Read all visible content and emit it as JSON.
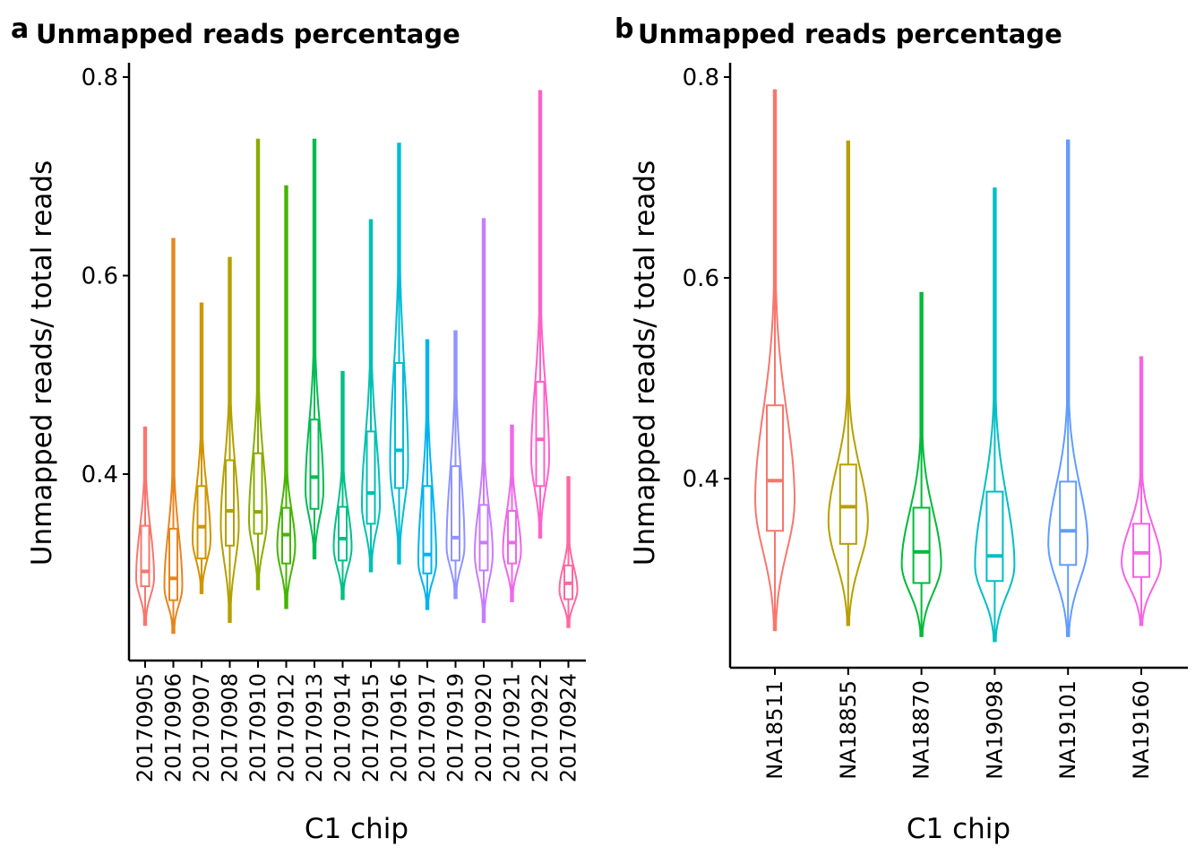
{
  "chart_data": [
    {
      "panel_label": "a",
      "type": "violin",
      "title": "Unmapped reads percentage",
      "xlabel": "C1 chip",
      "ylabel": "Unmapped reads/ total reads",
      "ylim": [
        0.22,
        0.81
      ],
      "yticks": [
        0.4,
        0.6,
        0.8
      ],
      "ytick_labels": [
        "0.4",
        "0.6",
        "0.8"
      ],
      "grid": false,
      "legend": "none",
      "categories": [
        "20170905",
        "20170906",
        "20170907",
        "20170908",
        "20170910",
        "20170912",
        "20170913",
        "20170914",
        "20170915",
        "20170916",
        "20170917",
        "20170919",
        "20170920",
        "20170921",
        "20170922",
        "20170924"
      ],
      "colors": [
        "#F8766D",
        "#E7851E",
        "#D09400",
        "#B2A100",
        "#89AC00",
        "#45B500",
        "#00BC51",
        "#00C087",
        "#00C0B2",
        "#00BCD6",
        "#00B3F2",
        "#8F94FF",
        "#C77CFF",
        "#F066EA",
        "#FF61C9",
        "#FF689F"
      ],
      "series": [
        {
          "name": "20170905",
          "min": 0.248,
          "q1": 0.287,
          "median": 0.302,
          "q3": 0.348,
          "max": 0.447
        },
        {
          "name": "20170906",
          "min": 0.24,
          "q1": 0.273,
          "median": 0.295,
          "q3": 0.345,
          "max": 0.637
        },
        {
          "name": "20170907",
          "min": 0.28,
          "q1": 0.315,
          "median": 0.347,
          "q3": 0.388,
          "max": 0.572
        },
        {
          "name": "20170908",
          "min": 0.251,
          "q1": 0.328,
          "median": 0.363,
          "q3": 0.414,
          "max": 0.618
        },
        {
          "name": "20170910",
          "min": 0.284,
          "q1": 0.34,
          "median": 0.362,
          "q3": 0.421,
          "max": 0.737
        },
        {
          "name": "20170912",
          "min": 0.265,
          "q1": 0.31,
          "median": 0.339,
          "q3": 0.366,
          "max": 0.69
        },
        {
          "name": "20170913",
          "min": 0.315,
          "q1": 0.365,
          "median": 0.397,
          "q3": 0.455,
          "max": 0.737
        },
        {
          "name": "20170914",
          "min": 0.274,
          "q1": 0.313,
          "median": 0.335,
          "q3": 0.367,
          "max": 0.503
        },
        {
          "name": "20170915",
          "min": 0.302,
          "q1": 0.35,
          "median": 0.381,
          "q3": 0.443,
          "max": 0.656
        },
        {
          "name": "20170916",
          "min": 0.31,
          "q1": 0.386,
          "median": 0.424,
          "q3": 0.512,
          "max": 0.733
        },
        {
          "name": "20170917",
          "min": 0.264,
          "q1": 0.3,
          "median": 0.319,
          "q3": 0.388,
          "max": 0.535
        },
        {
          "name": "20170919",
          "min": 0.275,
          "q1": 0.313,
          "median": 0.336,
          "q3": 0.408,
          "max": 0.544
        },
        {
          "name": "20170920",
          "min": 0.251,
          "q1": 0.303,
          "median": 0.331,
          "q3": 0.369,
          "max": 0.657
        },
        {
          "name": "20170921",
          "min": 0.272,
          "q1": 0.31,
          "median": 0.331,
          "q3": 0.363,
          "max": 0.449
        },
        {
          "name": "20170922",
          "min": 0.336,
          "q1": 0.388,
          "median": 0.435,
          "q3": 0.493,
          "max": 0.786
        },
        {
          "name": "20170924",
          "min": 0.246,
          "q1": 0.274,
          "median": 0.29,
          "q3": 0.308,
          "max": 0.397
        }
      ]
    },
    {
      "panel_label": "b",
      "type": "violin",
      "title": "Unmapped reads percentage",
      "xlabel": "C1 chip",
      "ylabel": "Unmapped reads/ total reads",
      "ylim": [
        0.22,
        0.81
      ],
      "yticks": [
        0.4,
        0.6,
        0.8
      ],
      "ytick_labels": [
        "0.4",
        "0.6",
        "0.8"
      ],
      "grid": false,
      "legend": "none",
      "categories": [
        "NA18511",
        "NA18855",
        "NA18870",
        "NA19098",
        "NA19101",
        "NA19160"
      ],
      "colors": [
        "#F8766D",
        "#B79F00",
        "#00BA38",
        "#00BFC4",
        "#619CFF",
        "#F564E3"
      ],
      "series": [
        {
          "name": "NA18511",
          "min": 0.249,
          "q1": 0.348,
          "median": 0.398,
          "q3": 0.473,
          "max": 0.787
        },
        {
          "name": "NA18855",
          "min": 0.254,
          "q1": 0.335,
          "median": 0.372,
          "q3": 0.414,
          "max": 0.736
        },
        {
          "name": "NA18870",
          "min": 0.243,
          "q1": 0.296,
          "median": 0.327,
          "q3": 0.371,
          "max": 0.585
        },
        {
          "name": "NA19098",
          "min": 0.238,
          "q1": 0.298,
          "median": 0.323,
          "q3": 0.387,
          "max": 0.689
        },
        {
          "name": "NA19101",
          "min": 0.243,
          "q1": 0.314,
          "median": 0.348,
          "q3": 0.397,
          "max": 0.737
        },
        {
          "name": "NA19160",
          "min": 0.254,
          "q1": 0.302,
          "median": 0.326,
          "q3": 0.355,
          "max": 0.521
        }
      ]
    }
  ]
}
